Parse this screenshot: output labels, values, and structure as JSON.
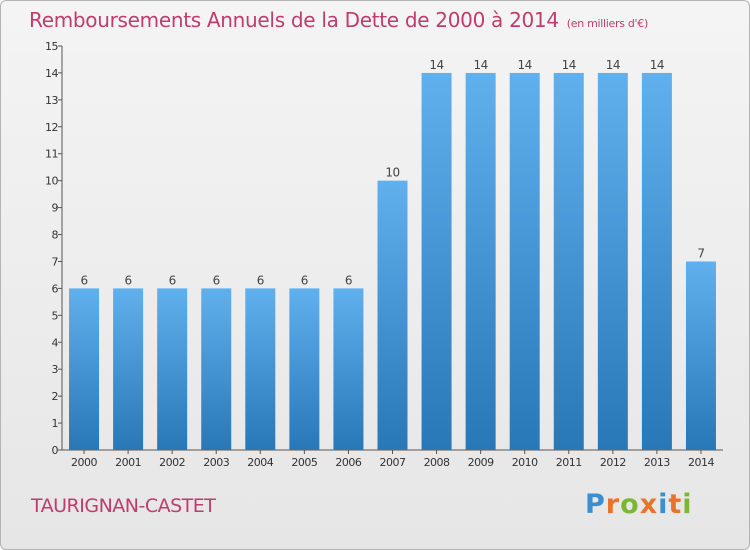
{
  "header": {
    "title": "Remboursements Annuels de la Dette de 2000 à 2014",
    "unit": "(en milliers d'€)"
  },
  "footer": {
    "commune": "TAURIGNAN-CASTET",
    "brand": "Proxiti",
    "brand_letters": [
      "P",
      "r",
      "o",
      "x",
      "i",
      "t",
      "i"
    ],
    "brand_colors": [
      "#3a8fd0",
      "#e8742c",
      "#7ab832",
      "#e8742c",
      "#3a8fd0",
      "#e8742c",
      "#7ab832"
    ]
  },
  "colors": {
    "bar_light": "#60b0ee",
    "bar_dark": "#2878b8",
    "title": "#c03c6c"
  },
  "chart_data": {
    "type": "bar",
    "title": "Remboursements Annuels de la Dette de 2000 à 2014",
    "xlabel": "",
    "ylabel": "(en milliers d'€)",
    "categories": [
      "2000",
      "2001",
      "2002",
      "2003",
      "2004",
      "2005",
      "2006",
      "2007",
      "2008",
      "2009",
      "2010",
      "2011",
      "2012",
      "2013",
      "2014"
    ],
    "values": [
      6,
      6,
      6,
      6,
      6,
      6,
      6,
      10,
      14,
      14,
      14,
      14,
      14,
      14,
      7
    ],
    "data_labels": [
      "6",
      "6",
      "6",
      "6",
      "6",
      "6",
      "6",
      "10",
      "14",
      "14",
      "14",
      "14",
      "14",
      "14",
      "7"
    ],
    "ylim": [
      0,
      15
    ],
    "yticks": [
      "0",
      "1",
      "2",
      "3",
      "4",
      "5",
      "6",
      "7",
      "8",
      "9",
      "10",
      "11",
      "12",
      "13",
      "14",
      "15"
    ],
    "grid": false,
    "legend": "none"
  }
}
